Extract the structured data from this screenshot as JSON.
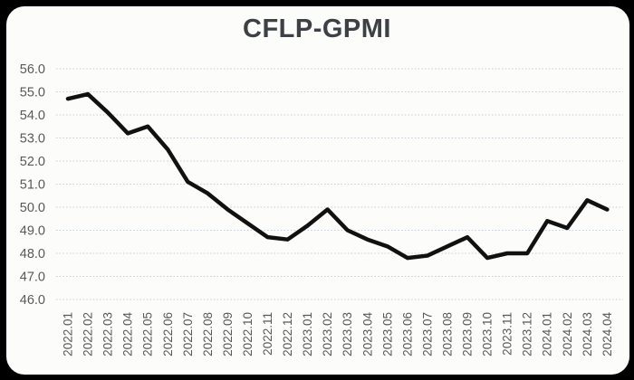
{
  "title": "CFLP-GPMI",
  "colors": {
    "frame_background": "#000000",
    "card_background": "#fcfcfa",
    "line": "#111111",
    "gridline": "#c3ced6",
    "axis_label": "#595959",
    "title_text": "#3d4145"
  },
  "chart_data": {
    "type": "line",
    "title": "CFLP-GPMI",
    "xlabel": "",
    "ylabel": "",
    "legend": "none",
    "grid": "horizontal-dotted",
    "ylim": [
      46.0,
      56.0
    ],
    "ytick_step": 1.0,
    "ytick_labels": [
      "46.0",
      "47.0",
      "48.0",
      "49.0",
      "50.0",
      "51.0",
      "52.0",
      "53.0",
      "54.0",
      "55.0",
      "56.0"
    ],
    "categories": [
      "2022.01",
      "2022.02",
      "2022.03",
      "2022.04",
      "2022.05",
      "2022.06",
      "2022.07",
      "2022.08",
      "2022.09",
      "2022.10",
      "2022.11",
      "2022.12",
      "2023.01",
      "2023.02",
      "2023.03",
      "2023.04",
      "2023.05",
      "2023.06",
      "2023.07",
      "2023.08",
      "2023.09",
      "2023.10",
      "2023.11",
      "2023.12",
      "2024.01",
      "2024.02",
      "2024.03",
      "2024.04"
    ],
    "values": [
      54.7,
      54.9,
      54.1,
      53.2,
      53.5,
      52.5,
      51.1,
      50.6,
      49.9,
      49.3,
      48.7,
      48.6,
      49.2,
      49.9,
      49.0,
      48.6,
      48.3,
      47.8,
      47.9,
      48.3,
      48.7,
      47.8,
      48.0,
      48.0,
      49.4,
      49.1,
      50.3,
      49.9
    ]
  }
}
